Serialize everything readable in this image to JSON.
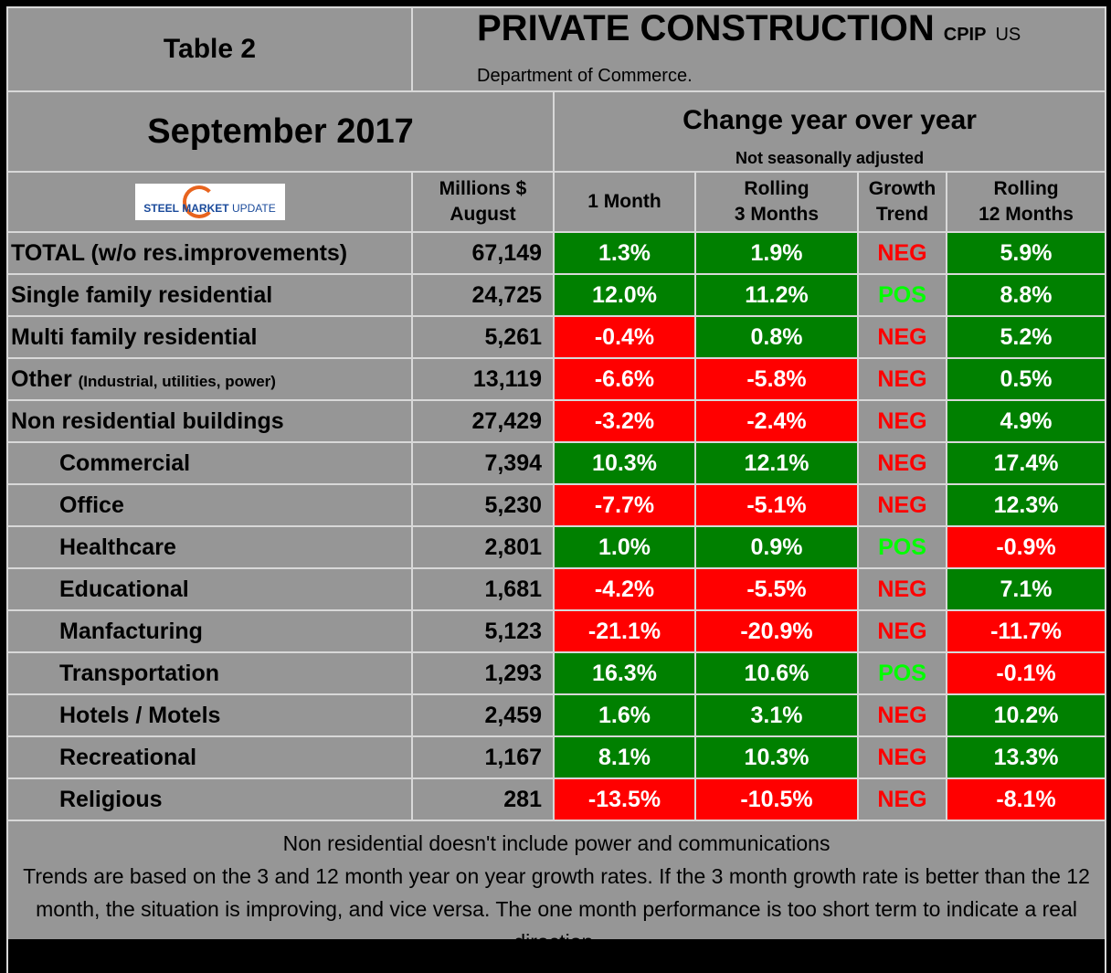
{
  "header": {
    "table_label": "Table 2",
    "title": "PRIVATE CONSTRUCTION",
    "cpip": "CPIP",
    "source": "US Department of Commerce.",
    "date": "September 2017",
    "change_title": "Change year over year",
    "change_sub": "Not seasonally adjusted"
  },
  "logo": {
    "text_bold": "STEEL",
    "text_mid": "MARKET",
    "text_light": "UPDATE"
  },
  "columns": {
    "millions": [
      "Millions $",
      "August"
    ],
    "m1": "1 Month",
    "m3": [
      "Rolling",
      "3 Months"
    ],
    "trend": [
      "Growth",
      "Trend"
    ],
    "m12": [
      "Rolling",
      "12 Months"
    ]
  },
  "colors": {
    "green": "#008000",
    "red": "#ff0000",
    "pos": "#00ff00",
    "neg": "#ff0000"
  },
  "rows": [
    {
      "label": "TOTAL (w/o res.improvements)",
      "note": "",
      "indent": false,
      "millions": "67,149",
      "m1": "1.3%",
      "m3": "1.9%",
      "trend": "NEG",
      "m12": "5.9%"
    },
    {
      "label": "Single family residential",
      "note": "",
      "indent": false,
      "millions": "24,725",
      "m1": "12.0%",
      "m3": "11.2%",
      "trend": "POS",
      "m12": "8.8%"
    },
    {
      "label": "Multi family residential",
      "note": "",
      "indent": false,
      "millions": "5,261",
      "m1": "-0.4%",
      "m3": "0.8%",
      "trend": "NEG",
      "m12": "5.2%"
    },
    {
      "label": "Other",
      "note": "(Industrial, utilities, power)",
      "indent": false,
      "millions": "13,119",
      "m1": "-6.6%",
      "m3": "-5.8%",
      "trend": "NEG",
      "m12": "0.5%"
    },
    {
      "label": "Non residential buildings",
      "note": "",
      "indent": false,
      "millions": "27,429",
      "m1": "-3.2%",
      "m3": "-2.4%",
      "trend": "NEG",
      "m12": "4.9%"
    },
    {
      "label": "Commercial",
      "note": "",
      "indent": true,
      "millions": "7,394",
      "m1": "10.3%",
      "m3": "12.1%",
      "trend": "NEG",
      "m12": "17.4%"
    },
    {
      "label": "Office",
      "note": "",
      "indent": true,
      "millions": "5,230",
      "m1": "-7.7%",
      "m3": "-5.1%",
      "trend": "NEG",
      "m12": "12.3%"
    },
    {
      "label": "Healthcare",
      "note": "",
      "indent": true,
      "millions": "2,801",
      "m1": "1.0%",
      "m3": "0.9%",
      "trend": "POS",
      "m12": "-0.9%"
    },
    {
      "label": "Educational",
      "note": "",
      "indent": true,
      "millions": "1,681",
      "m1": "-4.2%",
      "m3": "-5.5%",
      "trend": "NEG",
      "m12": "7.1%"
    },
    {
      "label": "Manfacturing",
      "note": "",
      "indent": true,
      "millions": "5,123",
      "m1": "-21.1%",
      "m3": "-20.9%",
      "trend": "NEG",
      "m12": "-11.7%"
    },
    {
      "label": "Transportation",
      "note": "",
      "indent": true,
      "millions": "1,293",
      "m1": "16.3%",
      "m3": "10.6%",
      "trend": "POS",
      "m12": "-0.1%"
    },
    {
      "label": "Hotels / Motels",
      "note": "",
      "indent": true,
      "millions": "2,459",
      "m1": "1.6%",
      "m3": "3.1%",
      "trend": "NEG",
      "m12": "10.2%"
    },
    {
      "label": "Recreational",
      "note": "",
      "indent": true,
      "millions": "1,167",
      "m1": "8.1%",
      "m3": "10.3%",
      "trend": "NEG",
      "m12": "13.3%"
    },
    {
      "label": "Religious",
      "note": "",
      "indent": true,
      "millions": "281",
      "m1": "-13.5%",
      "m3": "-10.5%",
      "trend": "NEG",
      "m12": "-8.1%"
    }
  ],
  "footer": {
    "note1": "Non residential doesn't include power and communications",
    "note2": "Trends are based on the 3 and 12 month year on year growth rates. If the 3 month growth rate is better than the 12 month, the situation is improving, and vice versa. The one month performance is too short term to indicate a real direction."
  }
}
